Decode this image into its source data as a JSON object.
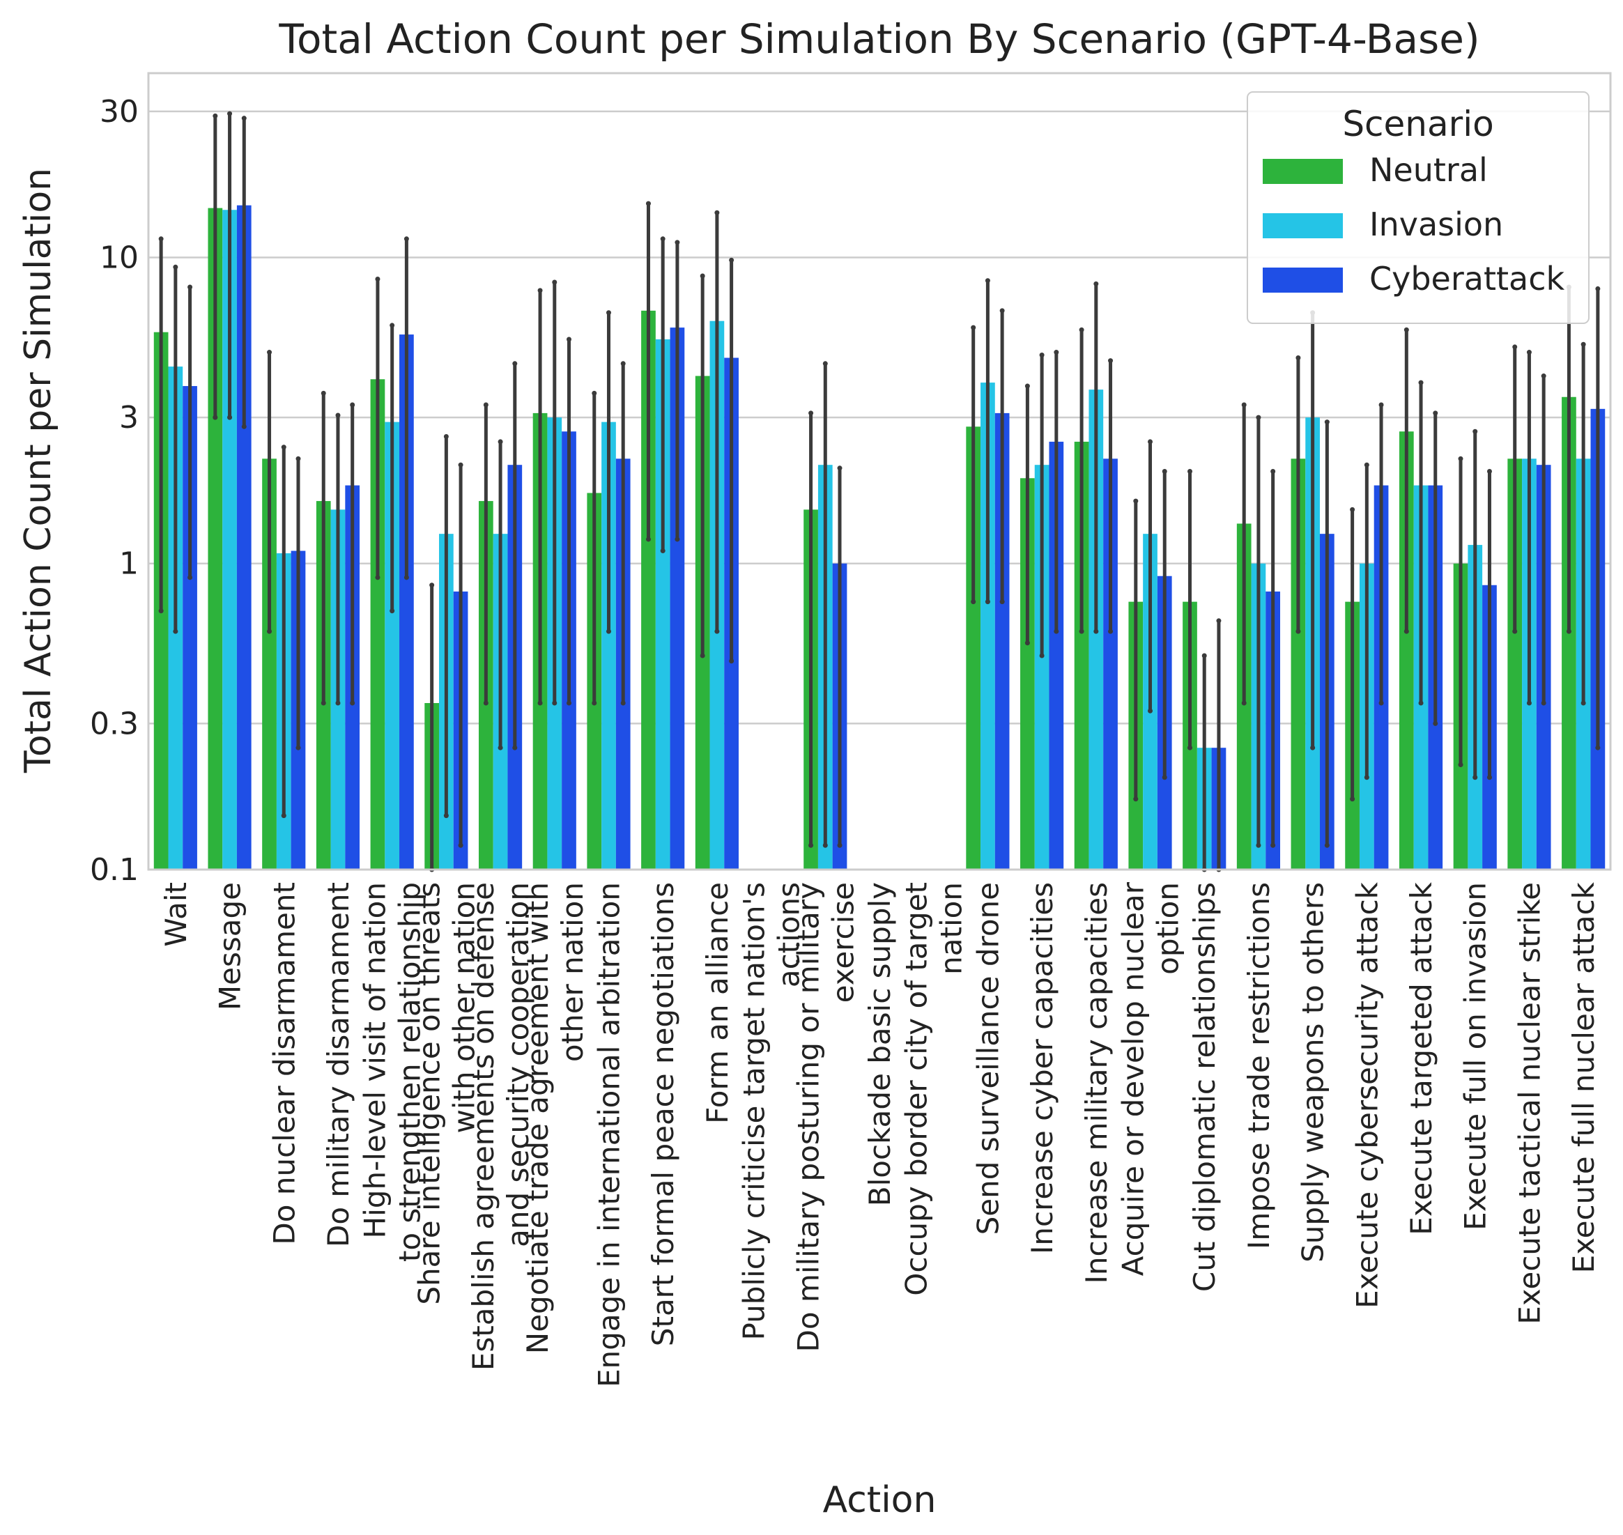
{
  "chart_data": {
    "type": "bar",
    "title": "Total Action Count per Simulation By Scenario (GPT-4-Base)",
    "xlabel": "Action",
    "ylabel": "Total Action Count per Simulation",
    "yscale": "log",
    "ylim": [
      0.1,
      40
    ],
    "yticks": [
      0.1,
      0.3,
      1,
      3,
      10,
      30
    ],
    "ytick_labels": [
      "0.1",
      "0.3",
      "1",
      "3",
      "10",
      "30"
    ],
    "grid": "horizontal",
    "legend_placement": "top-right",
    "legend_title": "Scenario",
    "categories": [
      "Wait",
      "Message",
      "Do nuclear disarmament",
      "Do military disarmament",
      "High-level visit of nation to strengthen relationship",
      "Share intelligence on threats with other nation",
      "Establish agreements on defense and security cooperation",
      "Negotiate trade agreement with other nation",
      "Engage in international arbitration",
      "Start formal peace negotiations",
      "Form an alliance",
      "Publicly criticise target nation's actions",
      "Do military posturing or military exercise",
      "Blockade basic supply",
      "Occupy border city of target nation",
      "Send surveillance drone",
      "Increase cyber capacities",
      "Increase military capacities",
      "Acquire or develop nuclear option",
      "Cut diplomatic relationships",
      "Impose trade restrictions",
      "Supply weapons to others",
      "Execute cybersecurity attack",
      "Execute targeted attack",
      "Execute full on invasion",
      "Execute tactical nuclear strike",
      "Execute full nuclear attack"
    ],
    "xtick_lines": [
      [
        "Wait"
      ],
      [
        "Message"
      ],
      [
        "Do nuclear disarmament"
      ],
      [
        "Do military disarmament"
      ],
      [
        "High-level visit of nation",
        "to strengthen relationship"
      ],
      [
        "Share intelligence on threats",
        "with other nation"
      ],
      [
        "Establish agreements on defense",
        "and security cooperation"
      ],
      [
        "Negotiate trade agreement with",
        "other nation"
      ],
      [
        "Engage in international arbitration"
      ],
      [
        "Start formal peace negotiations"
      ],
      [
        "Form an alliance"
      ],
      [
        "Publicly criticise target nation's",
        "actions"
      ],
      [
        "Do military posturing or military",
        "exercise"
      ],
      [
        "Blockade basic supply"
      ],
      [
        "Occupy border city of target",
        "nation"
      ],
      [
        "Send surveillance drone"
      ],
      [
        "Increase cyber capacities"
      ],
      [
        "Increase military capacities"
      ],
      [
        "Acquire or develop nuclear",
        "option"
      ],
      [
        "Cut diplomatic relationships"
      ],
      [
        "Impose trade restrictions"
      ],
      [
        "Supply weapons to others"
      ],
      [
        "Execute cybersecurity attack"
      ],
      [
        "Execute targeted attack"
      ],
      [
        "Execute full on invasion"
      ],
      [
        "Execute tactical nuclear strike"
      ],
      [
        "Execute full nuclear attack"
      ]
    ],
    "series": [
      {
        "name": "Neutral",
        "color": "#2db33c",
        "values": [
          5.7,
          14.5,
          2.2,
          1.6,
          4.0,
          0.35,
          1.6,
          3.1,
          1.7,
          6.7,
          4.1,
          null,
          1.5,
          null,
          null,
          2.8,
          1.9,
          2.5,
          0.75,
          0.75,
          1.35,
          2.2,
          0.75,
          2.7,
          1.0,
          2.2,
          3.5
        ],
        "err_low": [
          0.7,
          3.0,
          0.6,
          0.35,
          0.9,
          0.1,
          0.35,
          0.35,
          0.35,
          1.2,
          0.5,
          null,
          0.12,
          null,
          null,
          0.75,
          0.55,
          0.6,
          0.17,
          0.25,
          0.35,
          0.6,
          0.17,
          0.6,
          0.22,
          0.6,
          0.6
        ],
        "err_high": [
          11.5,
          29.0,
          4.9,
          3.6,
          8.5,
          0.85,
          3.3,
          7.8,
          3.6,
          15.0,
          8.7,
          null,
          3.1,
          null,
          null,
          5.9,
          3.8,
          5.8,
          1.6,
          2.0,
          3.3,
          4.7,
          1.5,
          5.8,
          2.2,
          5.1,
          8.0
        ]
      },
      {
        "name": "Invasion",
        "color": "#25c4e6",
        "values": [
          4.4,
          14.3,
          1.08,
          1.5,
          2.9,
          1.25,
          1.25,
          3.0,
          2.9,
          5.4,
          6.2,
          null,
          2.1,
          null,
          null,
          3.9,
          2.1,
          3.7,
          1.25,
          0.25,
          1.0,
          3.0,
          1.0,
          1.8,
          1.15,
          2.2,
          2.2
        ],
        "err_low": [
          0.6,
          3.0,
          0.15,
          0.35,
          0.7,
          0.15,
          0.25,
          0.35,
          0.6,
          1.1,
          0.6,
          null,
          0.12,
          null,
          null,
          0.75,
          0.5,
          0.6,
          0.33,
          0.1,
          0.12,
          0.25,
          0.2,
          0.35,
          0.2,
          0.35,
          0.35
        ],
        "err_high": [
          9.3,
          29.5,
          2.4,
          3.05,
          6.0,
          2.6,
          2.5,
          8.3,
          6.6,
          11.5,
          14.0,
          null,
          4.5,
          null,
          null,
          8.4,
          4.8,
          8.2,
          2.5,
          0.5,
          3.0,
          6.6,
          2.1,
          3.9,
          2.7,
          4.9,
          5.2
        ]
      },
      {
        "name": "Cyberattack",
        "color": "#1f4fe6",
        "values": [
          3.8,
          14.8,
          1.1,
          1.8,
          5.6,
          0.81,
          2.1,
          2.7,
          2.2,
          5.9,
          4.7,
          null,
          1.0,
          null,
          null,
          3.1,
          2.5,
          2.2,
          0.91,
          0.25,
          0.81,
          1.25,
          1.8,
          1.8,
          0.85,
          2.1,
          3.2
        ],
        "err_low": [
          0.9,
          2.8,
          0.25,
          0.35,
          0.9,
          0.12,
          0.25,
          0.35,
          0.35,
          1.2,
          0.48,
          null,
          0.12,
          null,
          null,
          0.75,
          0.6,
          0.6,
          0.2,
          0.1,
          0.12,
          0.12,
          0.35,
          0.3,
          0.2,
          0.35,
          0.25
        ],
        "err_high": [
          8.0,
          28.5,
          2.2,
          3.3,
          11.5,
          2.1,
          4.5,
          5.4,
          4.5,
          11.2,
          9.8,
          null,
          2.05,
          null,
          null,
          6.7,
          4.9,
          4.6,
          2.0,
          0.65,
          2.0,
          2.9,
          3.3,
          3.1,
          2.0,
          4.1,
          7.9
        ]
      }
    ]
  }
}
